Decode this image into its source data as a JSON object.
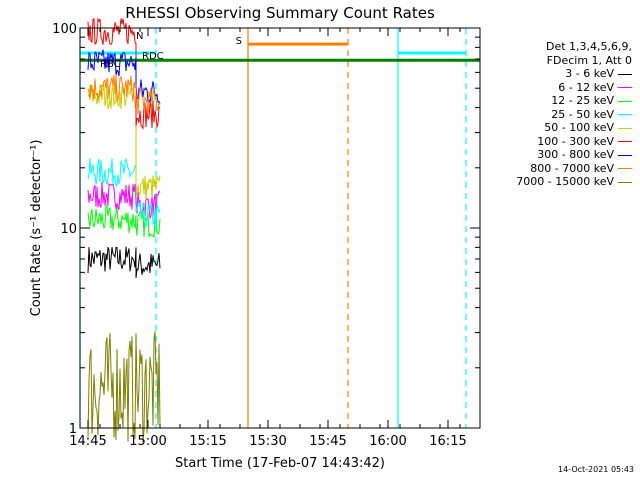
{
  "chart_data": {
    "type": "line",
    "title": "RHESSI Observing Summary Count Rates",
    "xlabel": "Start Time (17-Feb-07 14:43:42)",
    "ylabel": "Count Rate (s⁻¹ detector⁻¹)",
    "yscale": "log",
    "xlim_minutes": [
      -2,
      98
    ],
    "ylim": [
      1,
      100
    ],
    "x_tick_labels": [
      "14:45",
      "15:00",
      "15:15",
      "15:30",
      "15:45",
      "16:00",
      "16:15"
    ],
    "x_tick_minutes": [
      0,
      15,
      30,
      45,
      60,
      75,
      90
    ],
    "y_tick_labels": [
      "1",
      "10",
      "100"
    ],
    "y_tick_values": [
      1,
      10,
      100
    ],
    "legend_header": [
      "Det 1,3,4,5,6,9,",
      "FDecim 1, Att 0"
    ],
    "series": [
      {
        "name": "3 - 6 keV",
        "color": "#000000",
        "segments": [
          [
            0,
            12,
            7.0
          ],
          [
            12,
            18,
            6.5
          ]
        ]
      },
      {
        "name": "6 - 12 keV",
        "color": "#ff00ff",
        "segments": [
          [
            0,
            12,
            14.5
          ],
          [
            12,
            18,
            13.0
          ]
        ]
      },
      {
        "name": "12 - 25 keV",
        "color": "#00ff00",
        "segments": [
          [
            0,
            12,
            11.0
          ],
          [
            12,
            18,
            10.5
          ]
        ]
      },
      {
        "name": "25 - 50 keV",
        "color": "#00ffff",
        "segments": [
          [
            0,
            12,
            19.0
          ],
          [
            12,
            18,
            11.5
          ]
        ]
      },
      {
        "name": "50 - 100 keV",
        "color": "#cccc00",
        "segments": [
          [
            0,
            12,
            46.0
          ],
          [
            12,
            18,
            16.0
          ]
        ]
      },
      {
        "name": "100 - 300 keV",
        "color": "#ff0000",
        "segments": [
          [
            0,
            12,
            96.0
          ],
          [
            12,
            18,
            37.0
          ]
        ]
      },
      {
        "name": "300 - 800 keV",
        "color": "#0000ff",
        "segments": [
          [
            0,
            12,
            67.0
          ],
          [
            12,
            18,
            48.0
          ]
        ]
      },
      {
        "name": "800 - 7000 keV",
        "color": "#ff8000",
        "segments": [
          [
            0,
            12,
            50.0
          ],
          [
            12,
            18,
            43.0
          ]
        ]
      },
      {
        "name": "7000 - 15000 keV",
        "color": "#808000",
        "segments": [
          [
            0,
            18,
            1.6
          ]
        ]
      }
    ],
    "annotations": [
      {
        "text": "N",
        "color": "#00ffff"
      },
      {
        "text": "RDC",
        "color": "#008000"
      },
      {
        "text": "S",
        "color": "#ff8000"
      },
      {
        "text": "RBC",
        "color": "#000000"
      }
    ],
    "flags": [
      {
        "label": "night",
        "color": "#00ffff",
        "y": 75,
        "intervals": [
          [
            -2,
            17
          ],
          [
            77.5,
            94.5
          ]
        ]
      },
      {
        "label": "decimation",
        "color": "#008000",
        "y": 69,
        "intervals": [
          [
            -2,
            98
          ]
        ]
      },
      {
        "label": "saa",
        "color": "#ff8000",
        "y": 83,
        "intervals": [
          [
            40,
            65
          ]
        ]
      }
    ],
    "solid_vlines": [
      {
        "x": -2,
        "color": "#00ffff"
      },
      {
        "x": 40,
        "color": "#ff8000"
      },
      {
        "x": 77.5,
        "color": "#00ffff"
      }
    ],
    "dashed_vlines": [
      {
        "x": 17,
        "color": "#00ffff"
      },
      {
        "x": 65,
        "color": "#ff8000"
      },
      {
        "x": 94.5,
        "color": "#00ffff"
      }
    ]
  },
  "timestamp": "14-Oct-2021 05:43"
}
